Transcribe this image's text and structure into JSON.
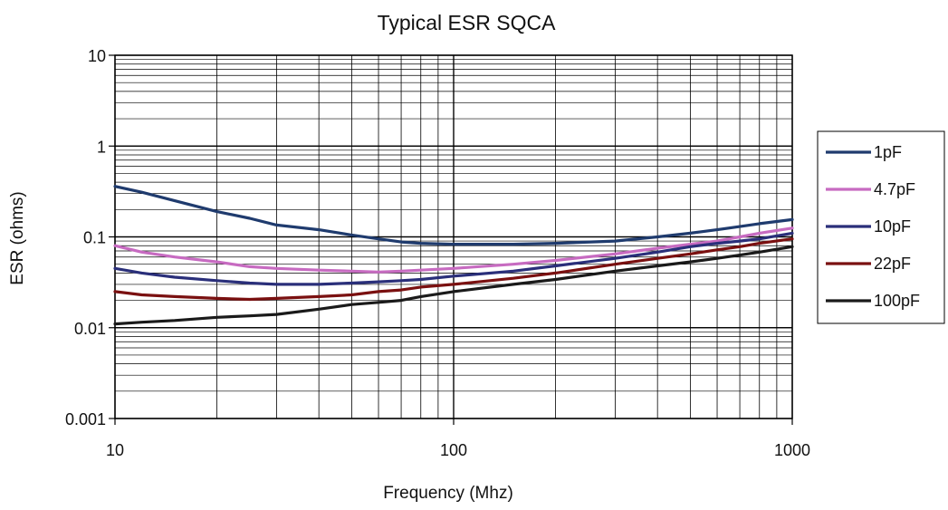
{
  "chart_data": {
    "type": "line",
    "title": "Typical ESR SQCA",
    "xlabel": "Frequency (Mhz)",
    "ylabel": "ESR (ohms)",
    "x_scale": "log",
    "y_scale": "log",
    "xlim": [
      10,
      1000
    ],
    "ylim": [
      0.001,
      10
    ],
    "x_ticks": [
      "10",
      "100",
      "1000"
    ],
    "y_ticks": [
      "10",
      "1",
      "0.1",
      "0.01",
      "0.001"
    ],
    "grid": true,
    "legend_position": "right",
    "x": [
      10,
      12,
      15,
      20,
      25,
      30,
      40,
      50,
      60,
      70,
      80,
      100,
      150,
      200,
      300,
      400,
      500,
      600,
      700,
      800,
      1000
    ],
    "series": [
      {
        "name": "1pF",
        "color": "#1f3b6e",
        "values": [
          0.36,
          0.31,
          0.25,
          0.19,
          0.16,
          0.135,
          0.12,
          0.105,
          0.095,
          0.088,
          0.085,
          0.083,
          0.083,
          0.085,
          0.09,
          0.1,
          0.11,
          0.12,
          0.13,
          0.14,
          0.155
        ]
      },
      {
        "name": "4.7pF",
        "color": "#c76bc1",
        "values": [
          0.08,
          0.068,
          0.06,
          0.053,
          0.047,
          0.045,
          0.043,
          0.042,
          0.041,
          0.042,
          0.043,
          0.045,
          0.05,
          0.055,
          0.065,
          0.075,
          0.083,
          0.09,
          0.1,
          0.11,
          0.125
        ]
      },
      {
        "name": "10pF",
        "color": "#2a2f7a",
        "values": [
          0.045,
          0.04,
          0.036,
          0.033,
          0.031,
          0.03,
          0.03,
          0.031,
          0.032,
          0.033,
          0.034,
          0.037,
          0.042,
          0.048,
          0.058,
          0.068,
          0.078,
          0.085,
          0.09,
          0.095,
          0.11
        ]
      },
      {
        "name": "22pF",
        "color": "#7a1010",
        "values": [
          0.025,
          0.023,
          0.022,
          0.021,
          0.0205,
          0.021,
          0.022,
          0.023,
          0.025,
          0.026,
          0.028,
          0.03,
          0.035,
          0.04,
          0.05,
          0.058,
          0.065,
          0.072,
          0.078,
          0.085,
          0.095
        ]
      },
      {
        "name": "100pF",
        "color": "#1a1a1a",
        "values": [
          0.011,
          0.0115,
          0.012,
          0.013,
          0.0135,
          0.014,
          0.016,
          0.018,
          0.019,
          0.02,
          0.022,
          0.025,
          0.03,
          0.034,
          0.042,
          0.048,
          0.053,
          0.058,
          0.063,
          0.068,
          0.078
        ]
      }
    ]
  }
}
